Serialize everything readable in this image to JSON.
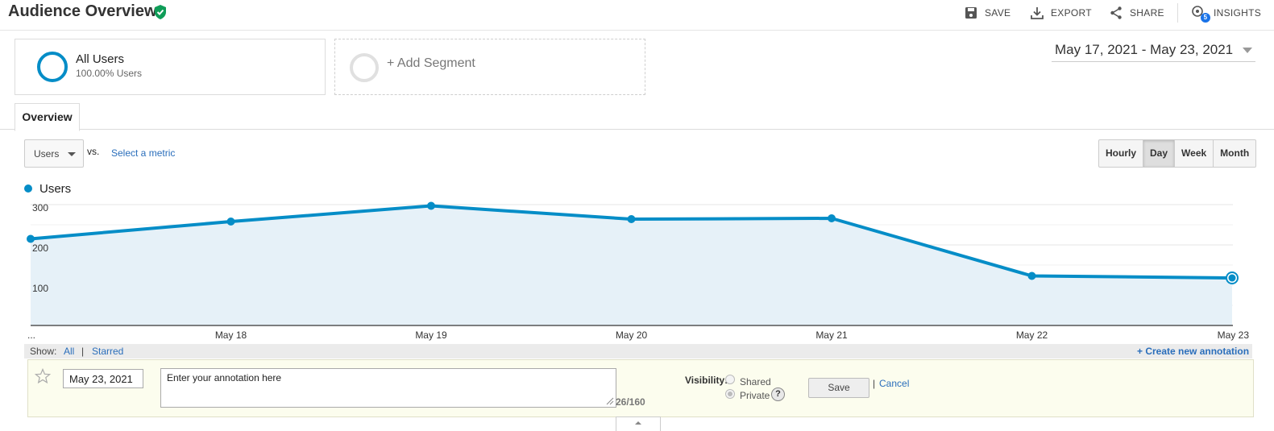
{
  "header": {
    "title": "Audience Overview",
    "actions": {
      "save": "SAVE",
      "export": "EXPORT",
      "share": "SHARE",
      "insights": "INSIGHTS",
      "insights_badge": "5"
    }
  },
  "segments": {
    "all_users": {
      "name": "All Users",
      "subtitle": "100.00% Users"
    },
    "add_segment": "+ Add Segment"
  },
  "date_range": "May 17, 2021 - May 23, 2021",
  "tabs": {
    "overview": "Overview"
  },
  "controls": {
    "metric": "Users",
    "vs": "vs.",
    "select_metric": "Select a metric",
    "granularity": [
      {
        "label": "Hourly",
        "active": false
      },
      {
        "label": "Day",
        "active": true
      },
      {
        "label": "Week",
        "active": false
      },
      {
        "label": "Month",
        "active": false
      }
    ]
  },
  "legend": {
    "series": "Users"
  },
  "colors": {
    "series": "#058dc7",
    "fill": "#e6f1f8",
    "link": "#2a6ebb"
  },
  "chart_data": {
    "type": "area",
    "x": [
      "...",
      "May 18",
      "May 19",
      "May 20",
      "May 21",
      "May 22",
      "May 23"
    ],
    "series": [
      {
        "name": "Users",
        "values": [
          215,
          258,
          297,
          264,
          266,
          123,
          118
        ]
      }
    ],
    "yticks": [
      100,
      200,
      300
    ],
    "ylim": [
      0,
      330
    ],
    "grid": true
  },
  "annotations": {
    "show_label": "Show:",
    "show_all": "All",
    "separator": "|",
    "show_starred": "Starred",
    "create_new": "+ Create new annotation",
    "date": "May 23, 2021",
    "text": "Enter your annotation here",
    "char_count": "26/160",
    "visibility_label": "Visibility:",
    "shared": "Shared",
    "private": "Private",
    "help": "?",
    "save": "Save",
    "cancel": "Cancel"
  }
}
